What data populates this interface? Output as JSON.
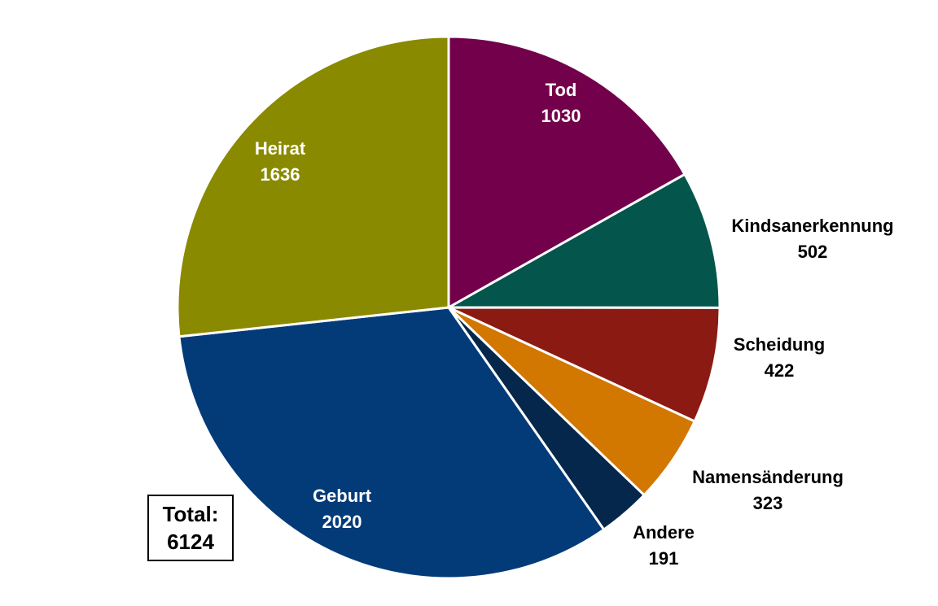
{
  "chart_data": {
    "type": "pie",
    "slices": [
      {
        "label": "Tod",
        "value": 1030,
        "color": "#72004a",
        "label_style": "inside"
      },
      {
        "label": "Kindsanerkennung",
        "value": 502,
        "color": "#04554b",
        "label_style": "outside"
      },
      {
        "label": "Scheidung",
        "value": 422,
        "color": "#8b1a12",
        "label_style": "outside"
      },
      {
        "label": "Namensänderung",
        "value": 323,
        "color": "#d27700",
        "label_style": "outside"
      },
      {
        "label": "Andere",
        "value": 191,
        "color": "#04274b",
        "label_style": "outside"
      },
      {
        "label": "Geburt",
        "value": 2020,
        "color": "#033b79",
        "label_style": "inside"
      },
      {
        "label": "Heirat",
        "value": 1636,
        "color": "#8a8a00",
        "label_style": "inside"
      }
    ],
    "start": "12 o'clock",
    "direction": "clockwise"
  },
  "total": {
    "label": "Total:",
    "value": "6124"
  }
}
